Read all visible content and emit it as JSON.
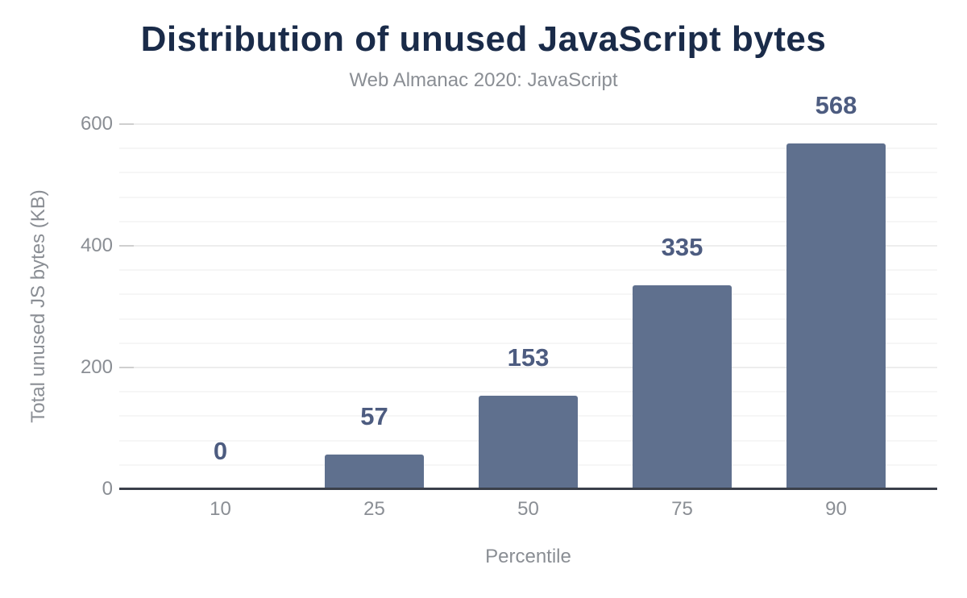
{
  "colors": {
    "background": "#ffffff",
    "title_text": "#1a2b49",
    "muted_text": "#8a8e94",
    "bar_fill": "#5f708e",
    "value_label_text": "#4d5c80",
    "axis_line": "#3a3f4a",
    "grid_major": "#ededed",
    "grid_minor": "#f6f6f6",
    "tick_dash": "#cfcfcf"
  },
  "chart_data": {
    "type": "bar",
    "title": "Distribution of unused JavaScript bytes",
    "subtitle": "Web Almanac 2020: JavaScript",
    "categories": [
      "10",
      "25",
      "50",
      "75",
      "90"
    ],
    "values": [
      0,
      57,
      153,
      335,
      568
    ],
    "value_labels": [
      "0",
      "57",
      "153",
      "335",
      "568"
    ],
    "xlabel": "Percentile",
    "ylabel": "Total unused JS bytes (KB)",
    "ylim": [
      0,
      600
    ],
    "yticks": [
      0,
      200,
      400,
      600
    ],
    "ytick_labels": [
      "0",
      "200",
      "400",
      "600"
    ],
    "minor_grid_step": 40,
    "grid": true,
    "legend": false
  }
}
